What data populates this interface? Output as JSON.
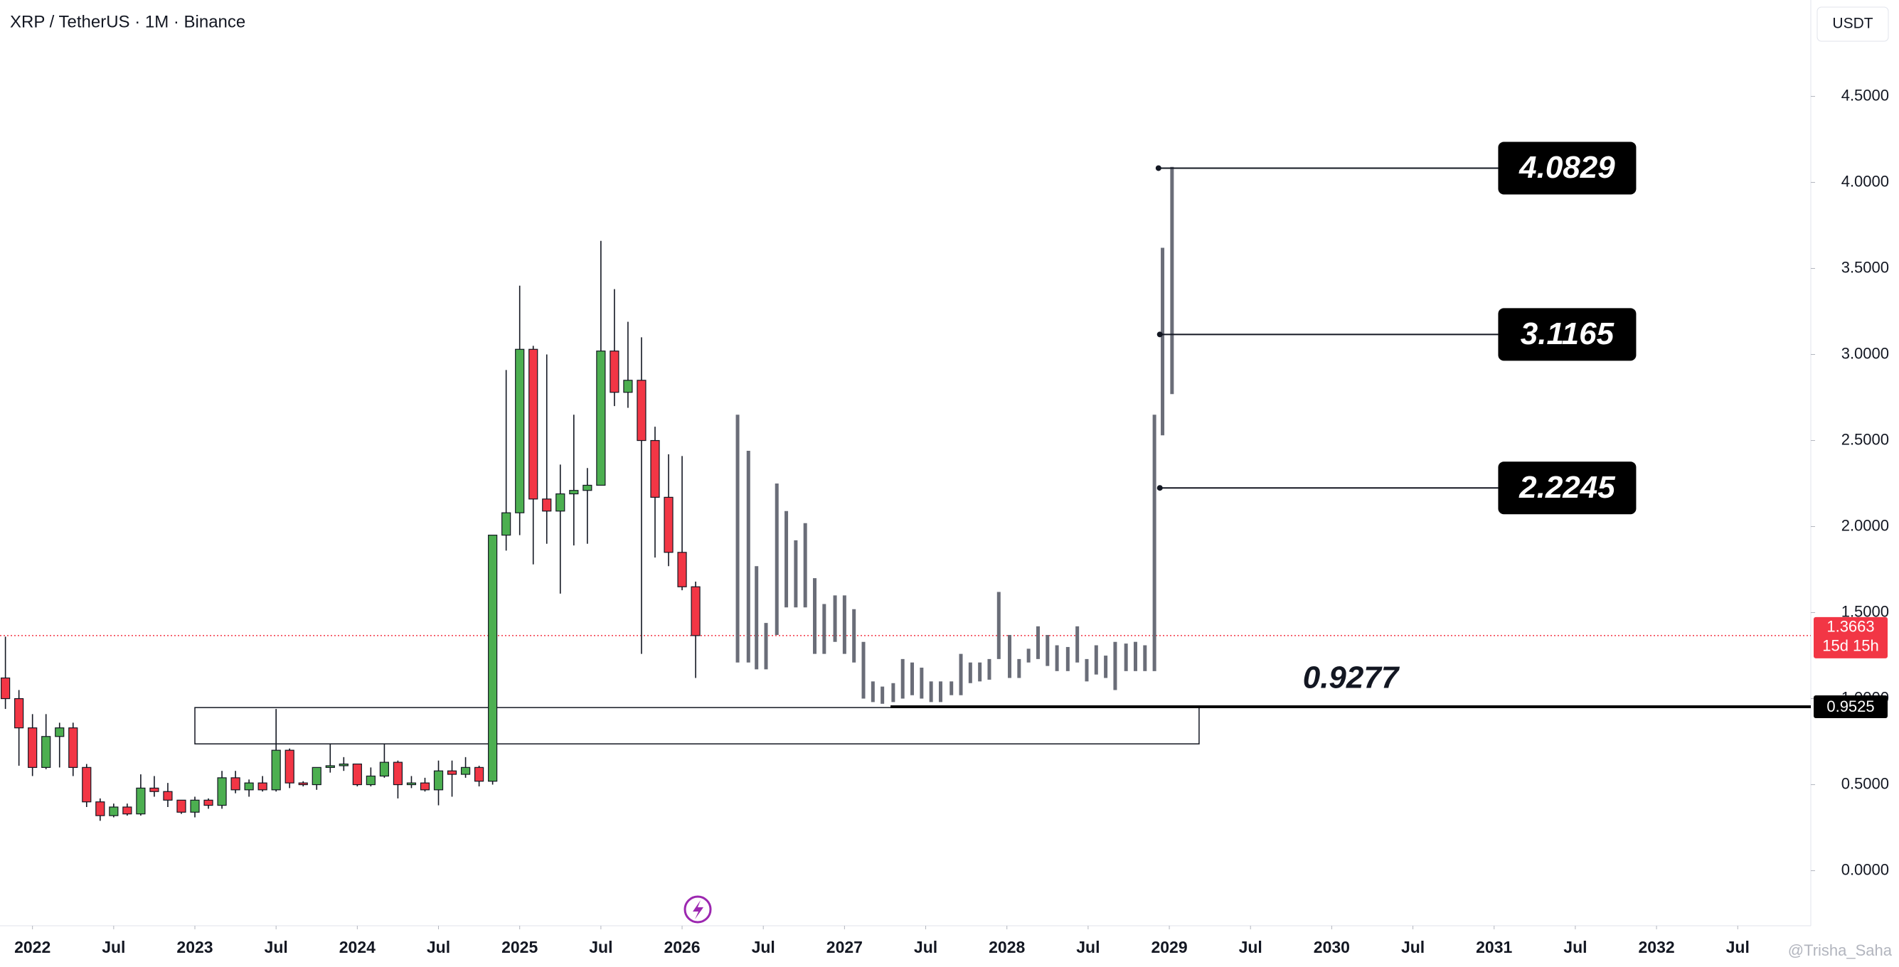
{
  "chart_data": {
    "type": "candlestick",
    "title": "XRP / TetherUS · 1M · Binance",
    "currency": "USDT",
    "watermark": "@Trisha_Saha",
    "up_color": "#4caf50",
    "down_color": "#f23645",
    "grid": false,
    "xlim": [
      -2.4,
      131.4
    ],
    "ylim": [
      -0.32,
      5.06
    ],
    "xticks": [
      {
        "value": 0,
        "label": "2022"
      },
      {
        "value": 6,
        "label": "Jul"
      },
      {
        "value": 12,
        "label": "2023"
      },
      {
        "value": 18,
        "label": "Jul"
      },
      {
        "value": 24,
        "label": "2024"
      },
      {
        "value": 30,
        "label": "Jul"
      },
      {
        "value": 36,
        "label": "2025"
      },
      {
        "value": 42,
        "label": "Jul"
      },
      {
        "value": 48,
        "label": "2026"
      },
      {
        "value": 54,
        "label": "Jul"
      },
      {
        "value": 60,
        "label": "2027"
      },
      {
        "value": 66,
        "label": "Jul"
      },
      {
        "value": 72,
        "label": "2028"
      },
      {
        "value": 78,
        "label": "Jul"
      },
      {
        "value": 84,
        "label": "2029"
      },
      {
        "value": 90,
        "label": "Jul"
      },
      {
        "value": 96,
        "label": "2030"
      },
      {
        "value": 102,
        "label": "Jul"
      },
      {
        "value": 108,
        "label": "2031"
      },
      {
        "value": 114,
        "label": "Jul"
      },
      {
        "value": 120,
        "label": "2032"
      },
      {
        "value": 126,
        "label": "Jul"
      }
    ],
    "yticks": [
      {
        "value": 0,
        "label": "0.0000"
      },
      {
        "value": 0.5,
        "label": "0.5000"
      },
      {
        "value": 1,
        "label": "1.0000"
      },
      {
        "value": 1.5,
        "label": "1.5000"
      },
      {
        "value": 2,
        "label": "2.0000"
      },
      {
        "value": 2.5,
        "label": "2.5000"
      },
      {
        "value": 3,
        "label": "3.0000"
      },
      {
        "value": 3.5,
        "label": "3.5000"
      },
      {
        "value": 4,
        "label": "4.0000"
      },
      {
        "value": 4.5,
        "label": "4.5000"
      }
    ],
    "x": [
      -2,
      -1,
      0,
      1,
      2,
      3,
      4,
      5,
      6,
      7,
      8,
      9,
      10,
      11,
      12,
      13,
      14,
      15,
      16,
      17,
      18,
      19,
      20,
      21,
      22,
      23,
      24,
      25,
      26,
      27,
      28,
      29,
      30,
      31,
      32,
      33,
      34,
      35,
      36,
      37,
      38,
      39,
      40,
      41,
      42,
      43,
      44,
      45,
      46,
      47,
      48,
      49
    ],
    "open": [
      1.12,
      1.0,
      0.83,
      0.6,
      0.78,
      0.83,
      0.6,
      0.4,
      0.32,
      0.37,
      0.33,
      0.48,
      0.46,
      0.41,
      0.34,
      0.41,
      0.38,
      0.54,
      0.47,
      0.51,
      0.47,
      0.7,
      0.51,
      0.5,
      0.6,
      0.61,
      0.62,
      0.5,
      0.55,
      0.63,
      0.5,
      0.51,
      0.47,
      0.58,
      0.56,
      0.6,
      0.52,
      1.95,
      2.08,
      3.03,
      2.16,
      2.09,
      2.19,
      2.21,
      2.24,
      3.02,
      2.78,
      2.85,
      2.5,
      2.17,
      1.85,
      1.65
    ],
    "high": [
      1.36,
      1.05,
      0.91,
      0.91,
      0.86,
      0.86,
      0.62,
      0.42,
      0.39,
      0.39,
      0.56,
      0.55,
      0.51,
      0.41,
      0.43,
      0.42,
      0.58,
      0.58,
      0.53,
      0.55,
      0.94,
      0.71,
      0.52,
      0.58,
      0.74,
      0.66,
      0.62,
      0.6,
      0.74,
      0.64,
      0.55,
      0.54,
      0.64,
      0.64,
      0.66,
      0.61,
      1.95,
      2.91,
      3.4,
      3.05,
      3.0,
      2.36,
      2.65,
      2.34,
      3.66,
      3.38,
      3.19,
      3.1,
      2.58,
      2.42,
      2.41,
      1.68
    ],
    "low": [
      0.94,
      0.61,
      0.55,
      0.59,
      0.6,
      0.55,
      0.37,
      0.29,
      0.31,
      0.32,
      0.32,
      0.43,
      0.37,
      0.33,
      0.31,
      0.36,
      0.36,
      0.45,
      0.43,
      0.46,
      0.46,
      0.48,
      0.49,
      0.47,
      0.57,
      0.58,
      0.49,
      0.49,
      0.54,
      0.42,
      0.48,
      0.46,
      0.38,
      0.43,
      0.54,
      0.49,
      0.5,
      1.86,
      1.95,
      1.78,
      1.9,
      1.61,
      1.89,
      1.9,
      2.26,
      2.7,
      2.69,
      1.26,
      1.82,
      1.77,
      1.63,
      1.12
    ],
    "close": [
      1.0,
      0.83,
      0.6,
      0.78,
      0.83,
      0.6,
      0.4,
      0.32,
      0.37,
      0.33,
      0.48,
      0.46,
      0.41,
      0.34,
      0.41,
      0.38,
      0.54,
      0.47,
      0.51,
      0.47,
      0.7,
      0.51,
      0.5,
      0.6,
      0.61,
      0.62,
      0.5,
      0.55,
      0.63,
      0.5,
      0.51,
      0.47,
      0.58,
      0.56,
      0.6,
      0.52,
      1.95,
      2.08,
      3.03,
      2.16,
      2.09,
      2.19,
      2.21,
      2.24,
      3.02,
      2.78,
      2.85,
      2.5,
      2.17,
      1.85,
      1.65,
      1.3663
    ],
    "projection": {
      "color": "#6a6d78",
      "x": [
        52.1,
        52.9,
        53.5,
        54.2,
        55.0,
        55.7,
        56.4,
        57.1,
        57.8,
        58.5,
        59.3,
        60.0,
        60.7,
        61.4,
        62.1,
        62.8,
        63.6,
        64.3,
        65.0,
        65.7,
        66.4,
        67.1,
        67.9,
        68.6,
        69.3,
        70.0,
        70.7,
        71.4,
        72.2,
        72.9,
        73.6,
        74.3,
        75.0,
        75.7,
        76.5,
        77.2,
        77.9,
        78.6,
        79.3,
        80.0,
        80.8,
        81.5,
        82.2,
        82.9,
        83.5,
        84.2
      ],
      "high": [
        2.65,
        2.44,
        1.77,
        1.44,
        2.25,
        2.09,
        1.92,
        2.02,
        1.7,
        1.55,
        1.6,
        1.6,
        1.52,
        1.33,
        1.1,
        1.07,
        1.09,
        1.23,
        1.21,
        1.18,
        1.1,
        1.1,
        1.1,
        1.26,
        1.21,
        1.21,
        1.23,
        1.62,
        1.37,
        1.23,
        1.29,
        1.42,
        1.37,
        1.31,
        1.3,
        1.42,
        1.23,
        1.31,
        1.25,
        1.33,
        1.32,
        1.33,
        1.31,
        2.65,
        3.62,
        4.09
      ],
      "low": [
        1.21,
        1.21,
        1.17,
        1.17,
        1.37,
        1.53,
        1.53,
        1.53,
        1.26,
        1.26,
        1.33,
        1.26,
        1.21,
        1.0,
        0.98,
        0.97,
        0.98,
        1.0,
        1.02,
        1.0,
        0.98,
        0.98,
        1.02,
        1.02,
        1.09,
        1.1,
        1.11,
        1.23,
        1.12,
        1.12,
        1.21,
        1.23,
        1.19,
        1.16,
        1.16,
        1.21,
        1.1,
        1.14,
        1.12,
        1.05,
        1.16,
        1.16,
        1.16,
        1.16,
        2.53,
        2.77
      ]
    },
    "zone": {
      "x": [
        12,
        86.2
      ],
      "y": [
        0.737,
        0.948
      ]
    },
    "levels": [
      {
        "value": 4.0829,
        "x": [
          83.2,
          108.3
        ]
      },
      {
        "value": 3.1165,
        "x": [
          83.3,
          108.3
        ]
      },
      {
        "value": 2.2245,
        "x": [
          83.3,
          108.3
        ]
      }
    ],
    "support": {
      "value": 0.9525,
      "x_start": 63.4
    },
    "annotation": {
      "text": 0.9277,
      "x": 97.4,
      "y": 1.11
    },
    "last_price": 1.3663,
    "countdown": "15d 15h"
  }
}
